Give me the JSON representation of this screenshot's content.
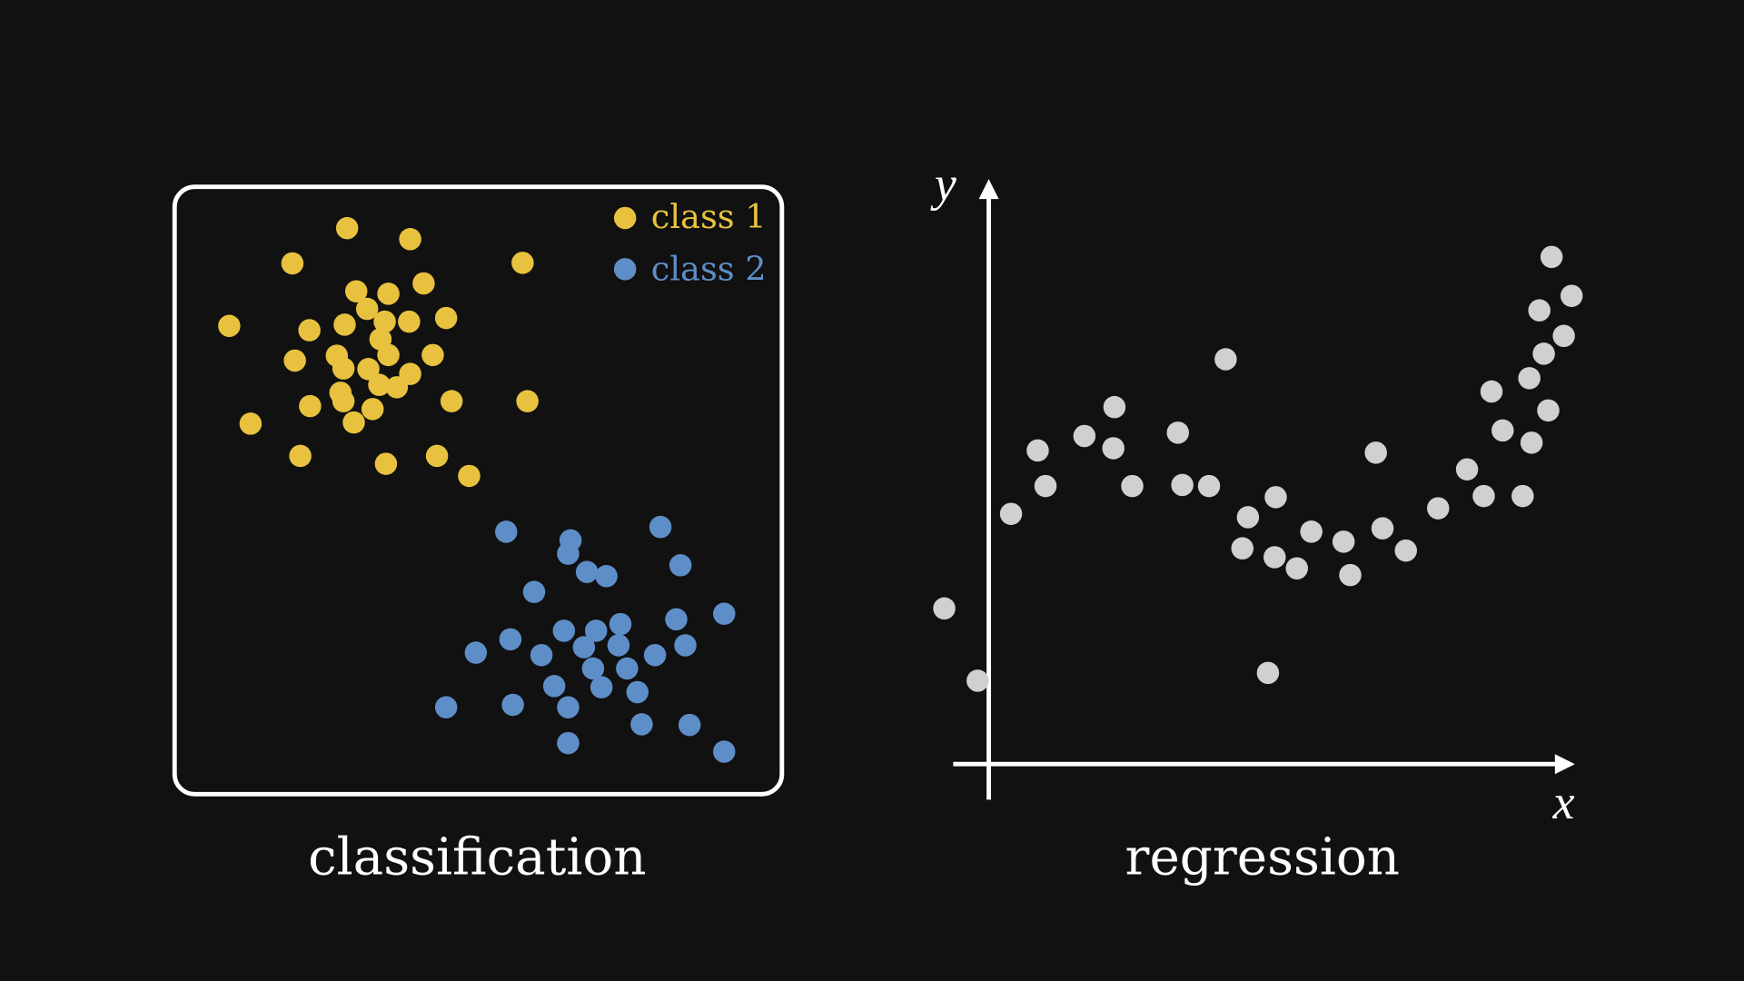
{
  "background": "#111111",
  "colors": {
    "class1": "#e8c23f",
    "class2": "#5e8ec8",
    "regression_points": "#d0d0d0",
    "axes": "#ffffff"
  },
  "classification": {
    "caption": "classification",
    "legend": [
      {
        "label": "class 1",
        "color": "#e8c23f"
      },
      {
        "label": "class 2",
        "color": "#5e8ec8"
      }
    ]
  },
  "regression": {
    "caption": "regression",
    "x_label": "x",
    "y_label": "y"
  },
  "chart_data": [
    {
      "type": "scatter",
      "title": "classification",
      "xlim": [
        0,
        10
      ],
      "ylim": [
        0,
        10
      ],
      "legend_position": "top-right",
      "grid": false,
      "series": [
        {
          "name": "class 1",
          "color": "#e8c23f",
          "points": [
            [
              2.84,
              9.32
            ],
            [
              3.88,
              9.14
            ],
            [
              1.94,
              8.74
            ],
            [
              5.73,
              8.75
            ],
            [
              2.99,
              8.28
            ],
            [
              3.52,
              8.24
            ],
            [
              4.1,
              8.41
            ],
            [
              0.9,
              7.71
            ],
            [
              2.22,
              7.64
            ],
            [
              2.8,
              7.73
            ],
            [
              3.17,
              7.99
            ],
            [
              3.46,
              7.78
            ],
            [
              3.86,
              7.78
            ],
            [
              4.47,
              7.84
            ],
            [
              3.39,
              7.49
            ],
            [
              1.98,
              7.14
            ],
            [
              2.67,
              7.22
            ],
            [
              3.52,
              7.23
            ],
            [
              4.25,
              7.23
            ],
            [
              2.78,
              7.01
            ],
            [
              3.19,
              7.0
            ],
            [
              3.88,
              6.92
            ],
            [
              3.37,
              6.74
            ],
            [
              3.66,
              6.7
            ],
            [
              2.73,
              6.61
            ],
            [
              2.78,
              6.47
            ],
            [
              2.23,
              6.39
            ],
            [
              3.26,
              6.34
            ],
            [
              4.56,
              6.47
            ],
            [
              5.81,
              6.47
            ],
            [
              1.25,
              6.1
            ],
            [
              2.95,
              6.12
            ],
            [
              2.07,
              5.57
            ],
            [
              3.48,
              5.44
            ],
            [
              4.32,
              5.57
            ],
            [
              4.85,
              5.24
            ]
          ]
        },
        {
          "name": "class 2",
          "color": "#5e8ec8",
          "points": [
            [
              5.46,
              4.32
            ],
            [
              6.52,
              4.18
            ],
            [
              8.0,
              4.4
            ],
            [
              6.48,
              3.96
            ],
            [
              8.33,
              3.77
            ],
            [
              6.79,
              3.66
            ],
            [
              7.11,
              3.59
            ],
            [
              5.92,
              3.33
            ],
            [
              8.26,
              2.88
            ],
            [
              9.05,
              2.97
            ],
            [
              7.34,
              2.8
            ],
            [
              6.41,
              2.69
            ],
            [
              6.94,
              2.69
            ],
            [
              5.53,
              2.55
            ],
            [
              4.96,
              2.33
            ],
            [
              6.04,
              2.29
            ],
            [
              6.74,
              2.42
            ],
            [
              7.31,
              2.45
            ],
            [
              7.91,
              2.29
            ],
            [
              8.41,
              2.45
            ],
            [
              6.89,
              2.07
            ],
            [
              7.45,
              2.07
            ],
            [
              6.25,
              1.78
            ],
            [
              7.03,
              1.76
            ],
            [
              7.62,
              1.68
            ],
            [
              4.47,
              1.43
            ],
            [
              5.57,
              1.47
            ],
            [
              6.48,
              1.43
            ],
            [
              7.69,
              1.15
            ],
            [
              8.48,
              1.14
            ],
            [
              6.48,
              0.84
            ],
            [
              9.05,
              0.7
            ]
          ]
        }
      ]
    },
    {
      "type": "scatter",
      "title": "regression",
      "xlabel": "x",
      "ylabel": "y",
      "xlim": [
        -0.64,
        10.5
      ],
      "ylim": [
        -0.64,
        10.5
      ],
      "grid": false,
      "series": [
        {
          "color": "#d0d0d0",
          "points": [
            [
              -0.8,
              2.8
            ],
            [
              -0.2,
              1.5
            ],
            [
              0.4,
              4.5
            ],
            [
              0.88,
              5.64
            ],
            [
              1.02,
              5.0
            ],
            [
              1.72,
              5.9
            ],
            [
              2.26,
              6.42
            ],
            [
              2.24,
              5.68
            ],
            [
              2.58,
              5.0
            ],
            [
              3.4,
              5.96
            ],
            [
              3.48,
              5.02
            ],
            [
              3.96,
              5.0
            ],
            [
              4.26,
              7.28
            ],
            [
              4.66,
              4.44
            ],
            [
              5.16,
              4.8
            ],
            [
              4.56,
              3.88
            ],
            [
              5.14,
              3.72
            ],
            [
              5.54,
              3.52
            ],
            [
              5.8,
              4.18
            ],
            [
              6.38,
              4.0
            ],
            [
              6.5,
              3.4
            ],
            [
              5.02,
              1.64
            ],
            [
              6.96,
              5.6
            ],
            [
              7.08,
              4.24
            ],
            [
              7.5,
              3.84
            ],
            [
              8.08,
              4.6
            ],
            [
              8.6,
              5.3
            ],
            [
              8.9,
              4.82
            ],
            [
              9.04,
              6.7
            ],
            [
              9.24,
              6.0
            ],
            [
              9.6,
              4.82
            ],
            [
              9.76,
              5.78
            ],
            [
              9.72,
              6.94
            ],
            [
              10.06,
              6.36
            ],
            [
              9.98,
              7.38
            ],
            [
              9.9,
              8.16
            ],
            [
              10.34,
              7.7
            ],
            [
              10.48,
              8.42
            ],
            [
              10.12,
              9.12
            ]
          ]
        }
      ]
    }
  ]
}
